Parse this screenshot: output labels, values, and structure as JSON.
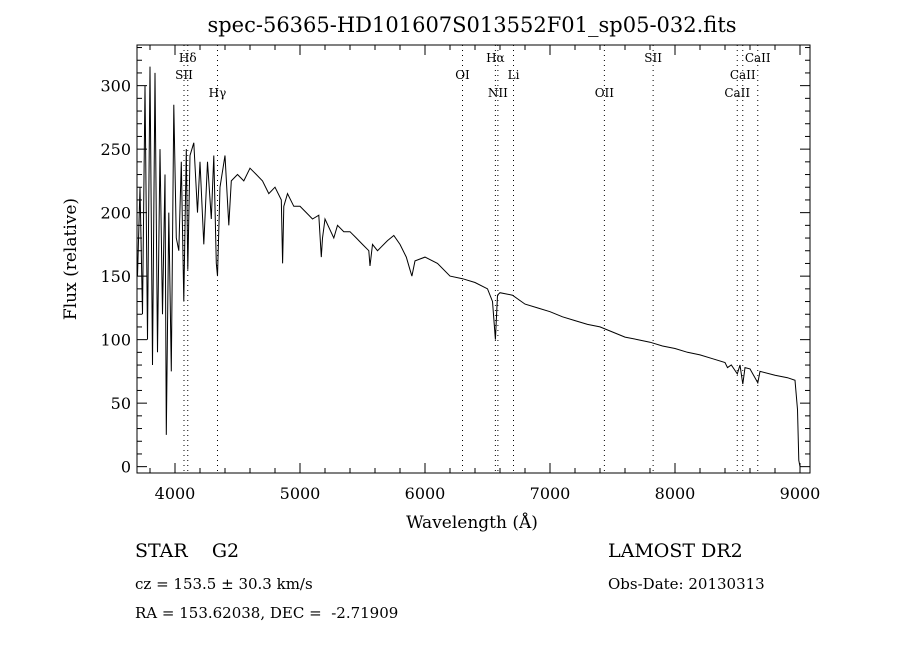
{
  "chart_data": {
    "type": "line",
    "title": "spec-56365-HD101607S013552F01_sp05-032.fits",
    "xlabel": "Wavelength (Å)",
    "ylabel": "Flux (relative)",
    "xlim": [
      3696,
      9080
    ],
    "ylim": [
      -5,
      332
    ],
    "xticks": [
      4000,
      5000,
      6000,
      7000,
      8000,
      9000
    ],
    "yticks": [
      0,
      50,
      100,
      150,
      200,
      250,
      300
    ],
    "grid": false,
    "spectral_lines": [
      {
        "label": "Hδ",
        "wavelength": 4102,
        "row": 0
      },
      {
        "label": "SII",
        "wavelength": 4072,
        "row": 1
      },
      {
        "label": "Hγ",
        "wavelength": 4340,
        "row": 2
      },
      {
        "label": "OI",
        "wavelength": 6300,
        "row": 1
      },
      {
        "label": "Hα",
        "wavelength": 6563,
        "row": 0
      },
      {
        "label": "NII",
        "wavelength": 6583,
        "row": 2
      },
      {
        "label": "Li",
        "wavelength": 6708,
        "row": 1
      },
      {
        "label": "OII",
        "wavelength": 7435,
        "row": 2
      },
      {
        "label": "SII",
        "wavelength": 7825,
        "row": 0
      },
      {
        "label": "CaII",
        "wavelength": 8662,
        "row": 0
      },
      {
        "label": "CaII",
        "wavelength": 8542,
        "row": 1
      },
      {
        "label": "CaII",
        "wavelength": 8498,
        "row": 2
      }
    ],
    "series": [
      {
        "name": "flux",
        "x": [
          3700,
          3720,
          3740,
          3760,
          3780,
          3800,
          3820,
          3840,
          3860,
          3880,
          3900,
          3920,
          3930,
          3950,
          3970,
          3990,
          4010,
          4030,
          4050,
          4070,
          4090,
          4102,
          4120,
          4150,
          4180,
          4200,
          4230,
          4260,
          4290,
          4310,
          4330,
          4340,
          4360,
          4400,
          4430,
          4450,
          4500,
          4550,
          4600,
          4650,
          4700,
          4750,
          4800,
          4850,
          4861,
          4870,
          4900,
          4950,
          5000,
          5050,
          5100,
          5150,
          5170,
          5180,
          5200,
          5270,
          5300,
          5350,
          5400,
          5450,
          5500,
          5550,
          5560,
          5580,
          5620,
          5700,
          5750,
          5800,
          5850,
          5880,
          5895,
          5920,
          6000,
          6100,
          6200,
          6300,
          6400,
          6500,
          6540,
          6563,
          6580,
          6600,
          6700,
          6800,
          6900,
          7000,
          7100,
          7200,
          7300,
          7400,
          7500,
          7600,
          7700,
          7800,
          7900,
          8000,
          8100,
          8200,
          8300,
          8400,
          8420,
          8450,
          8498,
          8520,
          8542,
          8560,
          8600,
          8662,
          8680,
          8800,
          8900,
          8960,
          8980,
          8990,
          9000
        ],
        "y": [
          150,
          220,
          120,
          300,
          100,
          315,
          80,
          310,
          90,
          250,
          120,
          230,
          25,
          200,
          75,
          285,
          180,
          170,
          240,
          130,
          250,
          155,
          245,
          255,
          200,
          240,
          175,
          240,
          195,
          245,
          160,
          150,
          220,
          245,
          190,
          225,
          230,
          225,
          235,
          230,
          225,
          215,
          220,
          210,
          160,
          205,
          215,
          205,
          205,
          200,
          195,
          198,
          165,
          180,
          195,
          180,
          190,
          185,
          185,
          180,
          175,
          170,
          158,
          175,
          170,
          178,
          182,
          175,
          165,
          155,
          150,
          162,
          165,
          160,
          150,
          148,
          145,
          140,
          130,
          100,
          135,
          137,
          135,
          128,
          125,
          122,
          118,
          115,
          112,
          110,
          106,
          102,
          100,
          98,
          95,
          93,
          90,
          88,
          85,
          82,
          78,
          80,
          73,
          80,
          65,
          78,
          77,
          66,
          75,
          72,
          70,
          68,
          45,
          5,
          0
        ]
      }
    ]
  },
  "info": {
    "object": "STAR    G2",
    "survey": "LAMOST DR2",
    "redshift": "cz = 153.5 ± 30.3 km/s",
    "obs_date": "Obs-Date: 20130313",
    "coords": "RA = 153.62038, DEC =  -2.71909"
  }
}
